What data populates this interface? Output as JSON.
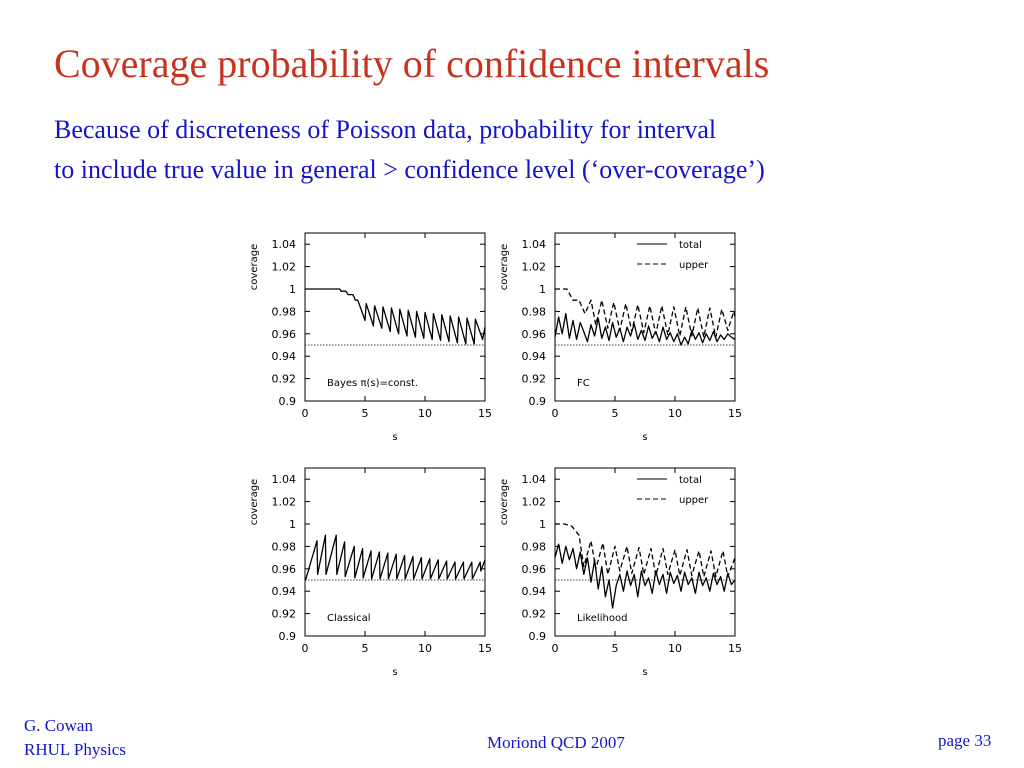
{
  "slide": {
    "title": "Coverage probability of confidence intervals",
    "subtitle_line1": "Because of discreteness of Poisson data, probability for interval",
    "subtitle_line2": "to include true value in general > confidence level (‘over-coverage’)",
    "footer": {
      "author": "G. Cowan",
      "department": "RHUL Physics",
      "conference": "Moriond QCD 2007",
      "page": "page 33"
    },
    "colors": {
      "title": "#c8331e",
      "text": "#1414cc",
      "plot": "#000000"
    }
  },
  "chart_data": [
    {
      "type": "line",
      "annotation": "Bayes π(s)=const.",
      "xlabel": "s",
      "ylabel": "coverage",
      "xlim": [
        0,
        15
      ],
      "ylim": [
        0.9,
        1.05
      ],
      "xticks": [
        "0",
        "5",
        "10",
        "15"
      ],
      "yticks": [
        "0.9",
        "0.92",
        "0.94",
        "0.96",
        "0.98",
        "1",
        "1.02",
        "1.04"
      ],
      "reference_line": 0.95,
      "legend": [],
      "series": [
        {
          "style": "solid",
          "x": [
            0,
            2.9,
            3.0,
            3.4,
            3.6,
            4.0,
            4.2,
            4.4,
            5.0,
            5.1,
            5.7,
            5.8,
            6.4,
            6.5,
            7.1,
            7.2,
            7.8,
            7.9,
            8.5,
            8.6,
            9.2,
            9.3,
            9.9,
            10.0,
            10.6,
            10.7,
            11.3,
            11.4,
            12.0,
            12.1,
            12.7,
            12.8,
            13.4,
            13.5,
            14.1,
            14.2,
            14.8,
            15.0
          ],
          "y": [
            1.0,
            1.0,
            0.998,
            0.998,
            0.995,
            0.995,
            0.99,
            0.99,
            0.972,
            0.987,
            0.967,
            0.985,
            0.965,
            0.984,
            0.962,
            0.983,
            0.96,
            0.982,
            0.958,
            0.981,
            0.957,
            0.98,
            0.956,
            0.979,
            0.955,
            0.978,
            0.954,
            0.977,
            0.953,
            0.976,
            0.952,
            0.975,
            0.951,
            0.974,
            0.951,
            0.973,
            0.955,
            0.966
          ]
        }
      ]
    },
    {
      "type": "line",
      "annotation": "FC",
      "xlabel": "s",
      "ylabel": "coverage",
      "xlim": [
        0,
        15
      ],
      "ylim": [
        0.9,
        1.05
      ],
      "xticks": [
        "0",
        "5",
        "10",
        "15"
      ],
      "yticks": [
        "0.9",
        "0.92",
        "0.94",
        "0.96",
        "0.98",
        "1",
        "1.02",
        "1.04"
      ],
      "reference_line": 0.95,
      "legend": [
        "total",
        "upper"
      ],
      "series": [
        {
          "name": "total",
          "style": "solid",
          "x": [
            0,
            0.3,
            0.6,
            0.9,
            1.2,
            1.5,
            1.8,
            2.1,
            2.4,
            2.7,
            3.0,
            3.3,
            3.6,
            3.9,
            4.2,
            4.5,
            4.8,
            5.1,
            5.4,
            5.7,
            6.0,
            6.3,
            6.6,
            6.9,
            7.2,
            7.5,
            7.8,
            8.1,
            8.4,
            8.7,
            9.0,
            9.3,
            9.6,
            9.9,
            10.2,
            10.5,
            10.8,
            11.1,
            11.4,
            11.7,
            12.0,
            12.3,
            12.6,
            12.9,
            13.2,
            13.5,
            13.8,
            14.1,
            14.4,
            14.7,
            15.0
          ],
          "y": [
            0.957,
            0.975,
            0.96,
            0.978,
            0.956,
            0.972,
            0.955,
            0.97,
            0.962,
            0.953,
            0.968,
            0.958,
            0.974,
            0.956,
            0.966,
            0.954,
            0.97,
            0.957,
            0.965,
            0.953,
            0.966,
            0.958,
            0.969,
            0.955,
            0.963,
            0.954,
            0.967,
            0.956,
            0.962,
            0.953,
            0.966,
            0.955,
            0.961,
            0.953,
            0.96,
            0.95,
            0.957,
            0.951,
            0.963,
            0.955,
            0.961,
            0.952,
            0.96,
            0.954,
            0.962,
            0.953,
            0.959,
            0.955,
            0.96,
            0.957,
            0.955
          ]
        },
        {
          "name": "upper",
          "style": "dashed",
          "x": [
            0,
            1.0,
            1.5,
            2.0,
            2.5,
            3.0,
            3.4,
            3.9,
            4.4,
            4.9,
            5.4,
            5.9,
            6.4,
            6.9,
            7.4,
            7.9,
            8.4,
            8.9,
            9.4,
            9.9,
            10.4,
            10.9,
            11.4,
            11.9,
            12.4,
            12.9,
            13.4,
            13.9,
            14.4,
            14.9,
            15.0
          ],
          "y": [
            1.0,
            1.0,
            0.99,
            0.99,
            0.978,
            0.99,
            0.968,
            0.99,
            0.965,
            0.988,
            0.963,
            0.987,
            0.962,
            0.986,
            0.961,
            0.985,
            0.96,
            0.985,
            0.959,
            0.984,
            0.958,
            0.984,
            0.958,
            0.983,
            0.957,
            0.983,
            0.957,
            0.982,
            0.963,
            0.98,
            0.975
          ]
        }
      ]
    },
    {
      "type": "line",
      "annotation": "Classical",
      "xlabel": "s",
      "ylabel": "coverage",
      "xlim": [
        0,
        15
      ],
      "ylim": [
        0.9,
        1.05
      ],
      "xticks": [
        "0",
        "5",
        "10",
        "15"
      ],
      "yticks": [
        "0.9",
        "0.92",
        "0.94",
        "0.96",
        "0.98",
        "1",
        "1.02",
        "1.04"
      ],
      "reference_line": 0.95,
      "legend": [],
      "series": [
        {
          "style": "solid",
          "x": [
            0,
            0.05,
            1.0,
            1.05,
            1.7,
            1.75,
            2.6,
            2.65,
            3.3,
            3.35,
            4.1,
            4.15,
            4.8,
            4.85,
            5.5,
            5.55,
            6.2,
            6.25,
            6.9,
            6.95,
            7.6,
            7.65,
            8.3,
            8.35,
            9.0,
            9.05,
            9.7,
            9.75,
            10.4,
            10.45,
            11.1,
            11.15,
            11.8,
            11.85,
            12.5,
            12.55,
            13.2,
            13.25,
            13.9,
            13.95,
            14.6,
            14.65,
            15.0
          ],
          "y": [
            0.95,
            0.95,
            0.985,
            0.955,
            0.99,
            0.955,
            0.99,
            0.955,
            0.984,
            0.953,
            0.98,
            0.952,
            0.978,
            0.952,
            0.976,
            0.951,
            0.975,
            0.951,
            0.974,
            0.951,
            0.973,
            0.951,
            0.972,
            0.951,
            0.971,
            0.951,
            0.97,
            0.951,
            0.969,
            0.951,
            0.968,
            0.951,
            0.967,
            0.951,
            0.966,
            0.951,
            0.966,
            0.951,
            0.966,
            0.951,
            0.966,
            0.958,
            0.968
          ]
        }
      ]
    },
    {
      "type": "line",
      "annotation": "Likelihood",
      "xlabel": "s",
      "ylabel": "coverage",
      "xlim": [
        0,
        15
      ],
      "ylim": [
        0.9,
        1.05
      ],
      "xticks": [
        "0",
        "5",
        "10",
        "15"
      ],
      "yticks": [
        "0.9",
        "0.92",
        "0.94",
        "0.96",
        "0.98",
        "1",
        "1.02",
        "1.04"
      ],
      "reference_line": 0.95,
      "legend": [
        "total",
        "upper"
      ],
      "series": [
        {
          "name": "total",
          "style": "solid",
          "x": [
            0,
            0.3,
            0.6,
            0.9,
            1.2,
            1.5,
            1.8,
            2.1,
            2.4,
            2.7,
            3.0,
            3.3,
            3.6,
            3.9,
            4.2,
            4.5,
            4.8,
            5.1,
            5.4,
            5.7,
            6.0,
            6.3,
            6.6,
            6.9,
            7.2,
            7.5,
            7.8,
            8.1,
            8.4,
            8.7,
            9.0,
            9.3,
            9.6,
            9.9,
            10.2,
            10.5,
            10.8,
            11.1,
            11.4,
            11.7,
            12.0,
            12.3,
            12.6,
            12.9,
            13.2,
            13.5,
            13.8,
            14.1,
            14.4,
            14.7,
            15.0
          ],
          "y": [
            0.97,
            0.982,
            0.965,
            0.98,
            0.968,
            0.978,
            0.96,
            0.975,
            0.955,
            0.97,
            0.948,
            0.968,
            0.942,
            0.962,
            0.935,
            0.95,
            0.925,
            0.945,
            0.955,
            0.94,
            0.958,
            0.945,
            0.955,
            0.935,
            0.958,
            0.945,
            0.952,
            0.938,
            0.958,
            0.946,
            0.955,
            0.938,
            0.957,
            0.947,
            0.954,
            0.94,
            0.957,
            0.946,
            0.952,
            0.938,
            0.957,
            0.945,
            0.952,
            0.94,
            0.956,
            0.946,
            0.953,
            0.94,
            0.956,
            0.946,
            0.95
          ]
        },
        {
          "name": "upper",
          "style": "dashed",
          "x": [
            0,
            0.8,
            1.4,
            2.0,
            2.4,
            3.0,
            3.4,
            4.0,
            4.4,
            5.0,
            5.4,
            6.0,
            6.4,
            7.0,
            7.4,
            8.0,
            8.4,
            9.0,
            9.4,
            10.0,
            10.4,
            11.0,
            11.4,
            12.0,
            12.4,
            13.0,
            13.4,
            14.0,
            14.4,
            15.0
          ],
          "y": [
            1.0,
            1.0,
            0.998,
            0.99,
            0.962,
            0.985,
            0.96,
            0.983,
            0.955,
            0.98,
            0.958,
            0.98,
            0.956,
            0.979,
            0.955,
            0.978,
            0.954,
            0.978,
            0.955,
            0.977,
            0.954,
            0.977,
            0.954,
            0.976,
            0.953,
            0.976,
            0.953,
            0.976,
            0.953,
            0.97
          ]
        }
      ]
    }
  ]
}
